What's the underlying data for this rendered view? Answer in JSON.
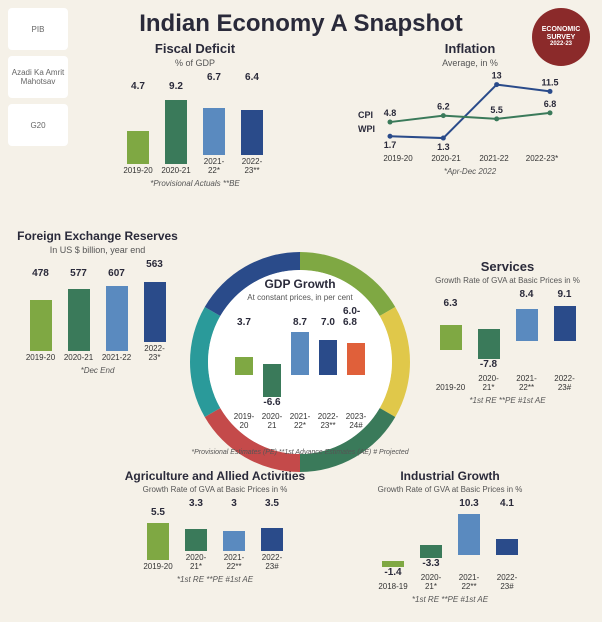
{
  "title": "Indian Economy A Snapshot",
  "badge": {
    "line1": "ECONOMIC",
    "line2": "SURVEY",
    "line3": "2022-23"
  },
  "logos": [
    "PIB",
    "Azadi Ka Amrit Mahotsav",
    "G20"
  ],
  "colors": {
    "green1": "#7fa843",
    "green2": "#3a7a5a",
    "blue1": "#5a8abf",
    "blue2": "#2a4b8a",
    "orange": "#e0603a",
    "ring": [
      "#7fa843",
      "#e0c84a",
      "#3a7a5a",
      "#c44a4a",
      "#2a9a9a",
      "#2a4b8a"
    ]
  },
  "fiscal": {
    "title": "Fiscal Deficit",
    "sub": "% of GDP",
    "cats": [
      "2019-20",
      "2020-21",
      "2021-22*",
      "2022-23**"
    ],
    "vals": [
      4.7,
      9.2,
      6.7,
      6.4
    ],
    "colors": [
      "#7fa843",
      "#3a7a5a",
      "#5a8abf",
      "#2a4b8a"
    ],
    "ymax": 10,
    "h": 70,
    "note": "*Provisional Actuals **BE"
  },
  "inflation": {
    "title": "Inflation",
    "sub": "Average, in %",
    "cats": [
      "2019-20",
      "2020-21",
      "2021-22",
      "2022-23*"
    ],
    "cpi": [
      4.8,
      6.2,
      5.5,
      6.8
    ],
    "wpi": [
      1.7,
      1.3,
      13.0,
      11.5
    ],
    "cpi_color": "#3a7a5a",
    "wpi_color": "#2a4b8a",
    "ymax": 14,
    "note": "*Apr-Dec 2022",
    "cpi_label": "CPI",
    "wpi_label": "WPI"
  },
  "forex": {
    "title": "Foreign Exchange Reserves",
    "sub": "In US $ billion, year end",
    "cats": [
      "2019-20",
      "2020-21",
      "2021-22",
      "2022-23*"
    ],
    "vals": [
      478,
      577,
      607,
      563
    ],
    "colors": [
      "#7fa843",
      "#3a7a5a",
      "#5a8abf",
      "#2a4b8a"
    ],
    "ymax": 650,
    "h": 70,
    "note": "*Dec End"
  },
  "gdp": {
    "title": "GDP Growth",
    "sub": "At constant prices, in per cent",
    "cats": [
      "2019-20",
      "2020-21",
      "2021-22*",
      "2022-23**",
      "2023-24#"
    ],
    "vals": [
      3.7,
      -6.6,
      8.7,
      7.0,
      6.4
    ],
    "val_labels": [
      "3.7",
      "-6.6",
      "8.7",
      "7.0",
      "6.0-6.8"
    ],
    "colors": [
      "#7fa843",
      "#3a7a5a",
      "#5a8abf",
      "#2a4b8a",
      "#e0603a"
    ],
    "ymax": 9,
    "ymin": -7,
    "h": 80,
    "note": "*Provisional Estimates (PE)  **1st Advance Estimates (AE)  # Projected"
  },
  "services": {
    "title": "Services",
    "sub": "Growth Rate of GVA at Basic Prices in %",
    "cats": [
      "2019-20",
      "2020-21*",
      "2021-22**",
      "2022-23#"
    ],
    "vals": [
      6.3,
      -7.8,
      8.4,
      9.1
    ],
    "colors": [
      "#7fa843",
      "#3a7a5a",
      "#5a8abf",
      "#2a4b8a"
    ],
    "ymax": 10,
    "ymin": -8,
    "h": 70,
    "note": "*1st RE  **PE  #1st AE"
  },
  "agri": {
    "title": "Agriculture and Allied Activities",
    "sub": "Growth Rate of GVA at Basic Prices in %",
    "cats": [
      "2019-20",
      "2020-21*",
      "2021-22**",
      "2022-23#"
    ],
    "vals": [
      5.5,
      3.3,
      3.0,
      3.5
    ],
    "colors": [
      "#7fa843",
      "#3a7a5a",
      "#5a8abf",
      "#2a4b8a"
    ],
    "ymax": 6,
    "h": 40,
    "note": "*1st RE  **PE  #1st AE"
  },
  "industrial": {
    "title": "Industrial Growth",
    "sub": "Growth Rate of GVA at Basic Prices in %",
    "cats": [
      "2018-19",
      "2020-21*",
      "2021-22**",
      "2022-23#"
    ],
    "vals": [
      -1.4,
      -3.3,
      10.3,
      4.1
    ],
    "colors": [
      "#7fa843",
      "#3a7a5a",
      "#5a8abf",
      "#2a4b8a"
    ],
    "ymax": 11,
    "ymin": -4,
    "h": 60,
    "note": "*1st RE  **PE  #1st AE"
  }
}
